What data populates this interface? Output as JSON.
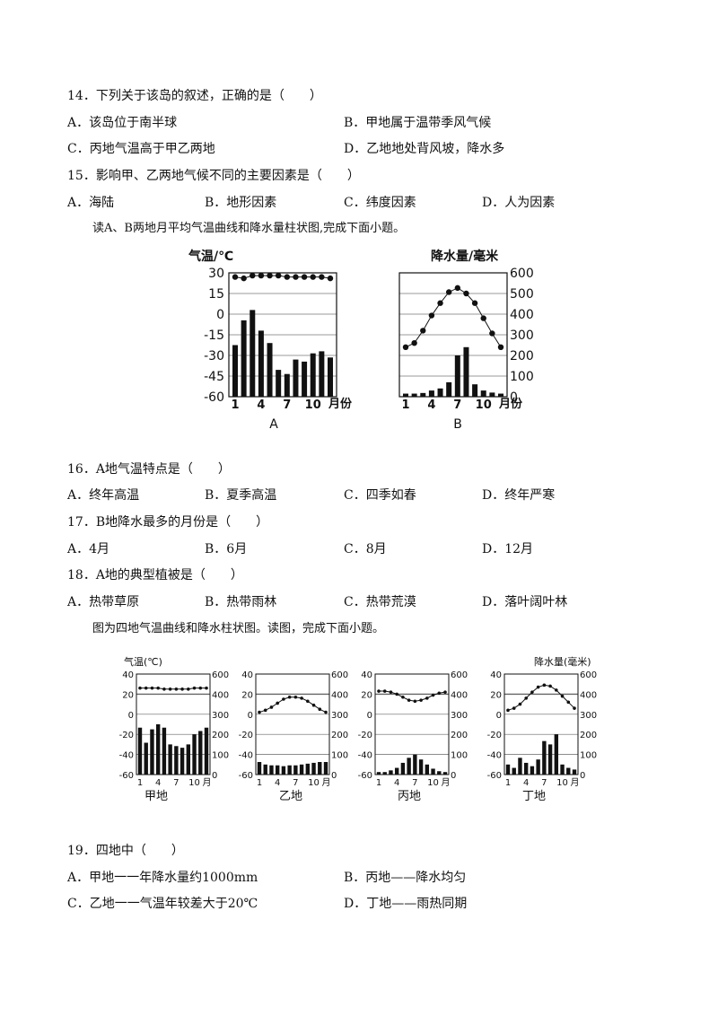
{
  "q14": {
    "stem": "14．下列关于该岛的叙述，正确的是（　　）",
    "options": [
      "A．该岛位于南半球",
      "B．甲地属于温带季风气候",
      "C．丙地气温高于甲乙两地",
      "D．乙地地处背风坡，降水多"
    ]
  },
  "q15": {
    "stem": "15．影响甲、乙两地气候不同的主要因素是（　　）",
    "options": [
      "A．海陆",
      "B．地形因素",
      "C．纬度因素",
      "D．人为因素"
    ]
  },
  "intro1": "读A、B两地月平均气温曲线和降水量柱状图,完成下面小题。",
  "figAB": {
    "labels": {
      "temp_axis": "气温/℃",
      "precip_axis": "降水量/毫米",
      "month_unit": "月份",
      "a": "A",
      "b": "B"
    },
    "temp_ticks": [
      "30",
      "15",
      "0",
      "-15",
      "-30",
      "-45",
      "-60"
    ],
    "precip_ticks": [
      "600",
      "500",
      "400",
      "300",
      "200",
      "100",
      "0"
    ],
    "month_ticks": [
      "1",
      "4",
      "7",
      "10"
    ]
  },
  "q16": {
    "stem": "16．A地气温特点是（　　）",
    "options": [
      "A．终年高温",
      "B．夏季高温",
      "C．四季如春",
      "D．终年严寒"
    ]
  },
  "q17": {
    "stem": "17．B地降水最多的月份是（　　）",
    "options": [
      "A．4月",
      "B．6月",
      "C．8月",
      "D．12月"
    ]
  },
  "q18": {
    "stem": "18．A地的典型植被是（　　）",
    "options": [
      "A．热带草原",
      "B．热带雨林",
      "C．热带荒漠",
      "D．落叶阔叶林"
    ]
  },
  "intro2": "图为四地气温曲线和降水柱状图。读图，完成下面小题。",
  "fig4": {
    "labels": {
      "temp_axis": "气温(℃)",
      "precip_axis": "降水量(毫米)",
      "month_unit": "月",
      "jia": "甲地",
      "yi": "乙地",
      "bing": "丙地",
      "ding": "丁地"
    },
    "temp_ticks": [
      "40",
      "20",
      "0",
      "-20",
      "-40",
      "-60"
    ],
    "precip_ticks": [
      "600",
      "400",
      "300",
      "200",
      "100",
      "0"
    ],
    "month_ticks": [
      "1",
      "4",
      "7",
      "10"
    ]
  },
  "q19": {
    "stem": "19．四地中（　　）",
    "options": [
      "A．甲地一一年降水量约1000mm",
      "B．丙地——降水均匀",
      "C．乙地一一气温年较差大于20℃",
      "D．丁地——雨热同期"
    ]
  },
  "chart_data": [
    {
      "type": "bar+line",
      "title": "A",
      "x": [
        1,
        2,
        3,
        4,
        5,
        6,
        7,
        8,
        9,
        10,
        11,
        12
      ],
      "temperature_c": [
        27,
        26,
        28,
        28,
        28,
        28,
        27,
        27,
        27,
        27,
        27,
        26
      ],
      "precipitation_mm": [
        250,
        370,
        420,
        320,
        260,
        130,
        110,
        180,
        170,
        210,
        220,
        190
      ],
      "temp_ylim": [
        -60,
        30
      ],
      "precip_ylim": [
        0,
        600
      ]
    },
    {
      "type": "bar+line",
      "title": "B",
      "x": [
        1,
        2,
        3,
        4,
        5,
        6,
        7,
        8,
        9,
        10,
        11,
        12
      ],
      "temperature_c": [
        -24,
        -21,
        -12,
        -1,
        8,
        16,
        19,
        15,
        8,
        -3,
        -14,
        -24
      ],
      "precipitation_mm": [
        15,
        15,
        18,
        30,
        40,
        70,
        200,
        240,
        60,
        30,
        20,
        15
      ],
      "temp_ylim": [
        -60,
        30
      ],
      "precip_ylim": [
        0,
        600
      ]
    },
    {
      "type": "bar+line",
      "title": "甲地",
      "x": [
        1,
        2,
        3,
        4,
        5,
        6,
        7,
        8,
        9,
        10,
        11,
        12
      ],
      "temperature_c": [
        26,
        26,
        26,
        26,
        25,
        25,
        25,
        25,
        25,
        26,
        26,
        26
      ],
      "precipitation_mm": [
        280,
        190,
        270,
        300,
        280,
        180,
        170,
        160,
        180,
        240,
        260,
        280
      ],
      "temp_ylim": [
        -60,
        40
      ],
      "precip_ylim": [
        0,
        600
      ]
    },
    {
      "type": "bar+line",
      "title": "乙地",
      "x": [
        1,
        2,
        3,
        4,
        5,
        6,
        7,
        8,
        9,
        10,
        11,
        12
      ],
      "temperature_c": [
        2,
        4,
        7,
        11,
        15,
        17,
        17,
        16,
        13,
        9,
        5,
        2
      ],
      "precipitation_mm": [
        75,
        60,
        55,
        55,
        50,
        55,
        55,
        60,
        65,
        70,
        75,
        75
      ],
      "temp_ylim": [
        -60,
        40
      ],
      "precip_ylim": [
        0,
        600
      ]
    },
    {
      "type": "bar+line",
      "title": "丙地",
      "x": [
        1,
        2,
        3,
        4,
        5,
        6,
        7,
        8,
        9,
        10,
        11,
        12
      ],
      "temperature_c": [
        23,
        23,
        22,
        20,
        17,
        14,
        13,
        14,
        16,
        19,
        21,
        22
      ],
      "precipitation_mm": [
        15,
        15,
        25,
        40,
        70,
        100,
        120,
        90,
        60,
        35,
        20,
        15
      ],
      "temp_ylim": [
        -60,
        40
      ],
      "precip_ylim": [
        0,
        600
      ]
    },
    {
      "type": "bar+line",
      "title": "丁地",
      "x": [
        1,
        2,
        3,
        4,
        5,
        6,
        7,
        8,
        9,
        10,
        11,
        12
      ],
      "temperature_c": [
        4,
        6,
        10,
        16,
        22,
        27,
        29,
        28,
        24,
        18,
        12,
        6
      ],
      "precipitation_mm": [
        60,
        40,
        100,
        70,
        50,
        90,
        200,
        180,
        240,
        60,
        40,
        30
      ],
      "temp_ylim": [
        -60,
        40
      ],
      "precip_ylim": [
        0,
        600
      ]
    }
  ]
}
